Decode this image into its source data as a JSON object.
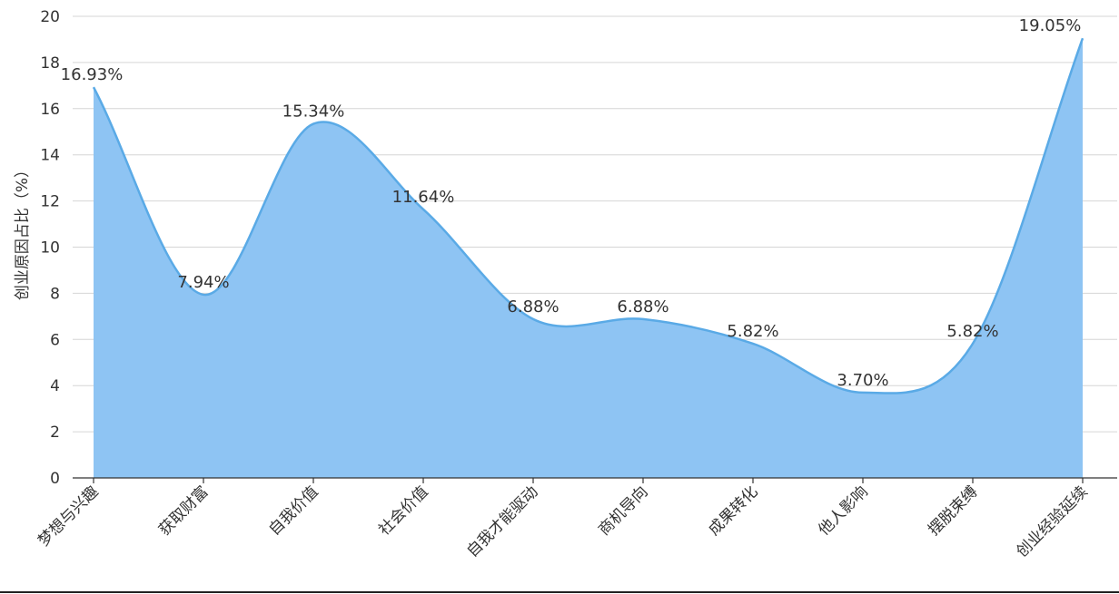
{
  "chart_data": {
    "type": "area",
    "title": "",
    "xlabel": "",
    "ylabel": "创业原因占比（%）",
    "ylim": [
      0,
      20
    ],
    "yticks": [
      0,
      2,
      4,
      6,
      8,
      10,
      12,
      14,
      16,
      18,
      20
    ],
    "categories": [
      "梦想与兴趣",
      "获取财富",
      "自我价值",
      "社会价值",
      "自我才能驱动",
      "商机导向",
      "成果转化",
      "他人影响",
      "摆脱束缚",
      "创业经验延续"
    ],
    "values": [
      16.93,
      7.94,
      15.34,
      11.64,
      6.88,
      6.88,
      5.82,
      3.7,
      5.82,
      19.05
    ],
    "data_labels": [
      "16.93%",
      "7.94%",
      "15.34%",
      "11.64%",
      "6.88%",
      "6.88%",
      "5.82%",
      "3.70%",
      "5.82%",
      "19.05%"
    ],
    "smooth": true,
    "grid": true,
    "legend": "none",
    "colors": {
      "fill": "#8ec4f3",
      "line": "#5aaae6",
      "grid": "#d6d6d6",
      "axis": "#333333",
      "text": "#333333"
    }
  }
}
